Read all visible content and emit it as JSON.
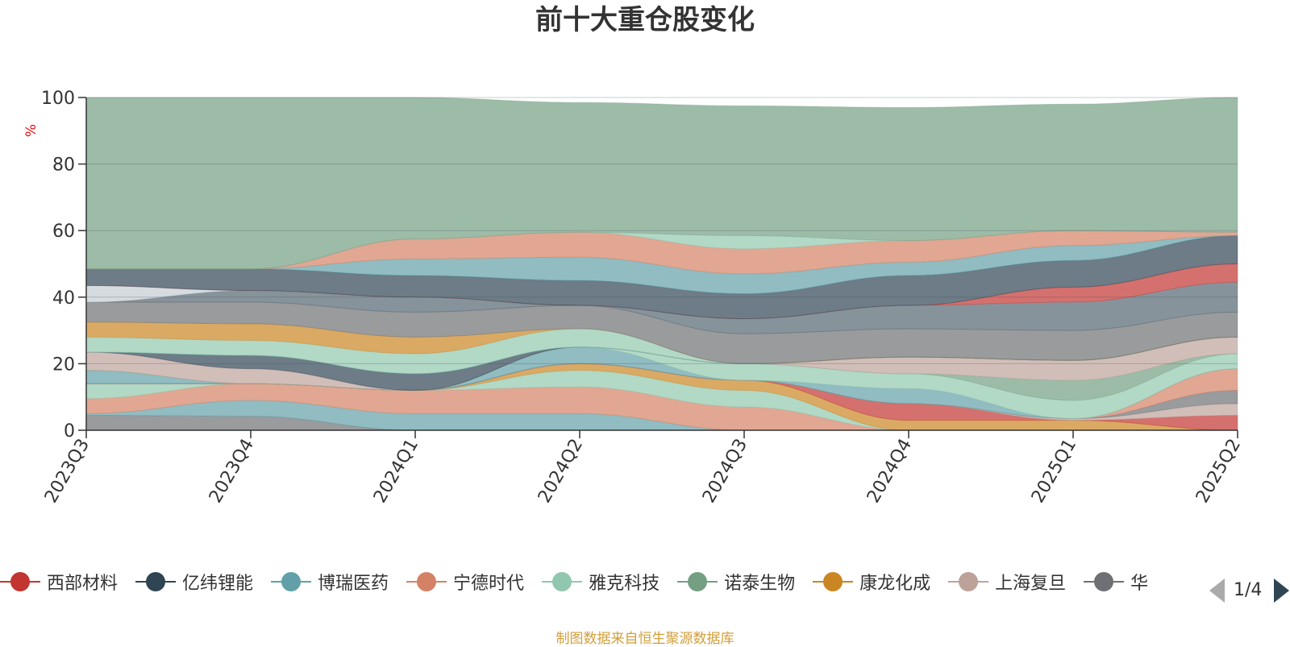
{
  "chart_data": {
    "type": "area",
    "title": "前十大重仓股变化",
    "ylabel": "%",
    "ylim": [
      0,
      100
    ],
    "yticks": [
      0,
      20,
      40,
      60,
      80,
      100
    ],
    "categories": [
      "2023Q3",
      "2023Q4",
      "2024Q1",
      "2024Q2",
      "2024Q3",
      "2024Q4",
      "2025Q1",
      "2025Q2"
    ],
    "grid": true,
    "legend_position": "bottom",
    "source": "制图数据来自恒生聚源数据库",
    "bands": [
      {
        "color": "#6e7074",
        "values": [
          [
            0,
            4.5
          ],
          [
            0,
            4.2
          ],
          [
            0,
            0
          ],
          [
            0,
            0
          ],
          [
            0,
            0
          ],
          [
            0,
            0
          ],
          [
            0,
            0
          ],
          [
            0,
            0
          ]
        ]
      },
      {
        "color": "#61a0a8",
        "values": [
          [
            4.5,
            5
          ],
          [
            4.2,
            9
          ],
          [
            0,
            5
          ],
          [
            0,
            5
          ],
          [
            0,
            0
          ],
          [
            0,
            0
          ],
          [
            0,
            0
          ],
          [
            0,
            0
          ]
        ]
      },
      {
        "color": "#d48265",
        "values": [
          [
            5,
            9.5
          ],
          [
            9,
            14
          ],
          [
            5,
            12
          ],
          [
            5,
            13
          ],
          [
            0,
            7
          ],
          [
            0,
            0
          ],
          [
            0,
            0
          ],
          [
            0,
            0
          ]
        ]
      },
      {
        "color": "#91c7ae",
        "values": [
          [
            9.5,
            14
          ],
          [
            14,
            14
          ],
          [
            12,
            12
          ],
          [
            13,
            18
          ],
          [
            7,
            12
          ],
          [
            0,
            0
          ],
          [
            0,
            0
          ],
          [
            0,
            0
          ]
        ]
      },
      {
        "color": "#ca8622",
        "values": [
          [
            14,
            14
          ],
          [
            14,
            14
          ],
          [
            12,
            12
          ],
          [
            18,
            20
          ],
          [
            12,
            15
          ],
          [
            0,
            3
          ],
          [
            0,
            3
          ],
          [
            0,
            0
          ]
        ]
      },
      {
        "color": "#c23531",
        "values": [
          [
            14,
            14
          ],
          [
            14,
            14
          ],
          [
            12,
            12
          ],
          [
            20,
            20
          ],
          [
            15,
            15
          ],
          [
            3,
            8
          ],
          [
            3,
            3
          ],
          [
            0,
            4.5
          ]
        ]
      },
      {
        "color": "#bda29a",
        "values": [
          [
            14,
            14
          ],
          [
            14,
            14
          ],
          [
            12,
            12
          ],
          [
            20,
            20
          ],
          [
            15,
            15
          ],
          [
            8,
            8
          ],
          [
            3,
            3.5
          ],
          [
            4.5,
            8
          ]
        ]
      },
      {
        "color": "#6e7074",
        "values": [
          [
            14,
            14
          ],
          [
            14,
            14
          ],
          [
            12,
            12
          ],
          [
            20,
            20
          ],
          [
            15,
            15
          ],
          [
            8,
            8
          ],
          [
            3.5,
            3.5
          ],
          [
            8,
            12
          ]
        ]
      },
      {
        "color": "#d48265",
        "values": [
          [
            14,
            14
          ],
          [
            14,
            14
          ],
          [
            12,
            12
          ],
          [
            20,
            20
          ],
          [
            15,
            15
          ],
          [
            8,
            8
          ],
          [
            3.5,
            3.5
          ],
          [
            12,
            18.5
          ]
        ]
      },
      {
        "color": "#61a0a8",
        "values": [
          [
            14,
            18
          ],
          [
            14,
            14
          ],
          [
            12,
            12
          ],
          [
            20,
            25
          ],
          [
            15,
            15
          ],
          [
            8,
            12.5
          ],
          [
            3.5,
            3.5
          ],
          [
            18.5,
            18.5
          ]
        ]
      },
      {
        "color": "#91c7ae",
        "values": [
          [
            18,
            18
          ],
          [
            14,
            14
          ],
          [
            12,
            12
          ],
          [
            25,
            25
          ],
          [
            15,
            20
          ],
          [
            12.5,
            17
          ],
          [
            3.5,
            9
          ],
          [
            18.5,
            23
          ]
        ]
      },
      {
        "color": "#749f83",
        "values": [
          [
            18,
            18
          ],
          [
            14,
            14
          ],
          [
            12,
            12
          ],
          [
            25,
            25
          ],
          [
            20,
            20
          ],
          [
            17,
            17
          ],
          [
            9,
            15
          ],
          [
            23,
            23
          ]
        ]
      },
      {
        "color": "#bda29a",
        "values": [
          [
            18,
            23.5
          ],
          [
            14,
            18.5
          ],
          [
            12,
            12
          ],
          [
            25,
            25
          ],
          [
            20,
            20
          ],
          [
            17,
            22
          ],
          [
            15,
            21
          ],
          [
            23,
            28
          ]
        ]
      },
      {
        "color": "#2f4554",
        "values": [
          [
            23.5,
            23.5
          ],
          [
            18.5,
            22.5
          ],
          [
            12,
            17
          ],
          [
            25,
            25
          ],
          [
            20,
            20
          ],
          [
            22,
            22
          ],
          [
            21,
            21
          ],
          [
            28,
            28
          ]
        ]
      },
      {
        "color": "#61a0a8",
        "values": [
          [
            23.5,
            23.5
          ],
          [
            22.5,
            22.5
          ],
          [
            17,
            17
          ],
          [
            25,
            25
          ],
          [
            20,
            20
          ],
          [
            22,
            22
          ],
          [
            21,
            21
          ],
          [
            28,
            28
          ]
        ]
      },
      {
        "color": "#91c7ae",
        "values": [
          [
            23.5,
            28
          ],
          [
            22.5,
            27
          ],
          [
            17,
            23
          ],
          [
            25,
            30.5
          ],
          [
            20,
            20
          ],
          [
            22,
            22
          ],
          [
            21,
            21
          ],
          [
            28,
            28
          ]
        ]
      },
      {
        "color": "#ca8622",
        "values": [
          [
            28,
            32.5
          ],
          [
            27,
            32
          ],
          [
            23,
            28
          ],
          [
            30.5,
            30.5
          ],
          [
            20,
            20
          ],
          [
            22,
            22
          ],
          [
            21,
            21
          ],
          [
            28,
            28
          ]
        ]
      },
      {
        "color": "#6e7074",
        "values": [
          [
            32.5,
            38.5
          ],
          [
            32,
            38.5
          ],
          [
            28,
            35.5
          ],
          [
            30.5,
            37.5
          ],
          [
            20,
            29
          ],
          [
            22,
            30.5
          ],
          [
            21,
            30
          ],
          [
            28,
            35.5
          ]
        ]
      },
      {
        "color": "#546570",
        "values": [
          [
            38.5,
            38.5
          ],
          [
            38.5,
            42
          ],
          [
            35.5,
            40
          ],
          [
            37.5,
            37.5
          ],
          [
            29,
            33.5
          ],
          [
            30.5,
            37.5
          ],
          [
            30,
            38.5
          ],
          [
            35.5,
            44.5
          ]
        ]
      },
      {
        "color": "#c4ccd3",
        "values": [
          [
            38.5,
            43.5
          ],
          [
            42,
            42
          ],
          [
            40,
            40
          ],
          [
            37.5,
            37.5
          ],
          [
            33.5,
            33.5
          ],
          [
            37.5,
            37.5
          ],
          [
            38.5,
            38.5
          ],
          [
            44.5,
            44.5
          ]
        ]
      },
      {
        "color": "#c23531",
        "values": [
          [
            43.5,
            43.5
          ],
          [
            42,
            42
          ],
          [
            40,
            40
          ],
          [
            37.5,
            37.5
          ],
          [
            33.5,
            33.5
          ],
          [
            37.5,
            37.5
          ],
          [
            38.5,
            43
          ],
          [
            44.5,
            50
          ]
        ]
      },
      {
        "color": "#2f4554",
        "values": [
          [
            43.5,
            48.5
          ],
          [
            42,
            48.5
          ],
          [
            40,
            46.5
          ],
          [
            37.5,
            45
          ],
          [
            33.5,
            41
          ],
          [
            37.5,
            46.5
          ],
          [
            43,
            51
          ],
          [
            50,
            58.5
          ]
        ]
      },
      {
        "color": "#61a0a8",
        "values": [
          [
            48.5,
            48.5
          ],
          [
            48.5,
            48.5
          ],
          [
            46.5,
            51.5
          ],
          [
            45,
            52
          ],
          [
            41,
            47
          ],
          [
            46.5,
            50.5
          ],
          [
            51,
            55.5
          ],
          [
            58.5,
            58.5
          ]
        ]
      },
      {
        "color": "#d48265",
        "values": [
          [
            48.5,
            48.5
          ],
          [
            48.5,
            48.5
          ],
          [
            51.5,
            57.5
          ],
          [
            52,
            59.5
          ],
          [
            47,
            54.5
          ],
          [
            50.5,
            57
          ],
          [
            55.5,
            60
          ],
          [
            58.5,
            59.5
          ]
        ]
      },
      {
        "color": "#91c7ae",
        "values": [
          [
            48.5,
            48.5
          ],
          [
            48.5,
            48.5
          ],
          [
            57.5,
            57.5
          ],
          [
            59.5,
            59.5
          ],
          [
            54.5,
            58.5
          ],
          [
            57,
            57
          ],
          [
            60,
            60
          ],
          [
            59.5,
            59.5
          ]
        ]
      },
      {
        "color": "#749f83",
        "values": [
          [
            48.5,
            100
          ],
          [
            48.5,
            100
          ],
          [
            57.5,
            100
          ],
          [
            59.5,
            98.5
          ],
          [
            58.5,
            97.5
          ],
          [
            57,
            97
          ],
          [
            60,
            98
          ],
          [
            59.5,
            100
          ]
        ]
      }
    ]
  },
  "legend": {
    "items": [
      {
        "label": "西部材料",
        "color": "#c23531"
      },
      {
        "label": "亿纬锂能",
        "color": "#2f4554"
      },
      {
        "label": "博瑞医药",
        "color": "#61a0a8"
      },
      {
        "label": "宁德时代",
        "color": "#d48265"
      },
      {
        "label": "雅克科技",
        "color": "#91c7ae"
      },
      {
        "label": "诺泰生物",
        "color": "#749f83"
      },
      {
        "label": "康龙化成",
        "color": "#ca8622"
      },
      {
        "label": "上海复旦",
        "color": "#bda29a"
      },
      {
        "label": "华",
        "color": "#6e7074"
      }
    ],
    "page_text": "1/4"
  }
}
